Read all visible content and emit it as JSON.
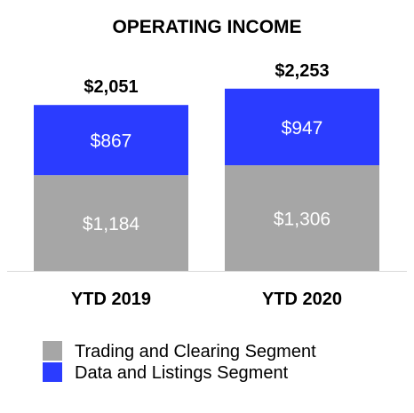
{
  "chart_data": {
    "type": "bar",
    "stacked": true,
    "title": "OPERATING INCOME",
    "categories": [
      "YTD 2019",
      "YTD 2020"
    ],
    "series": [
      {
        "name": "Trading and Clearing Segment",
        "values": [
          1184,
          1306
        ],
        "labels": [
          "$1,184",
          "$1,306"
        ],
        "color": "#a6a6a6"
      },
      {
        "name": "Data and Listings Segment",
        "values": [
          867,
          947
        ],
        "labels": [
          "$867",
          "$947"
        ],
        "color": "#2b3cff"
      }
    ],
    "totals": [
      2051,
      2253
    ],
    "total_labels": [
      "$2,051",
      "$2,253"
    ],
    "ylim": [
      0,
      2800
    ],
    "grid": false,
    "legend_position": "bottom-left",
    "colors": {
      "axis_line": "#d9d9d9",
      "segment_label": "#ffffff",
      "text": "#000000"
    }
  }
}
